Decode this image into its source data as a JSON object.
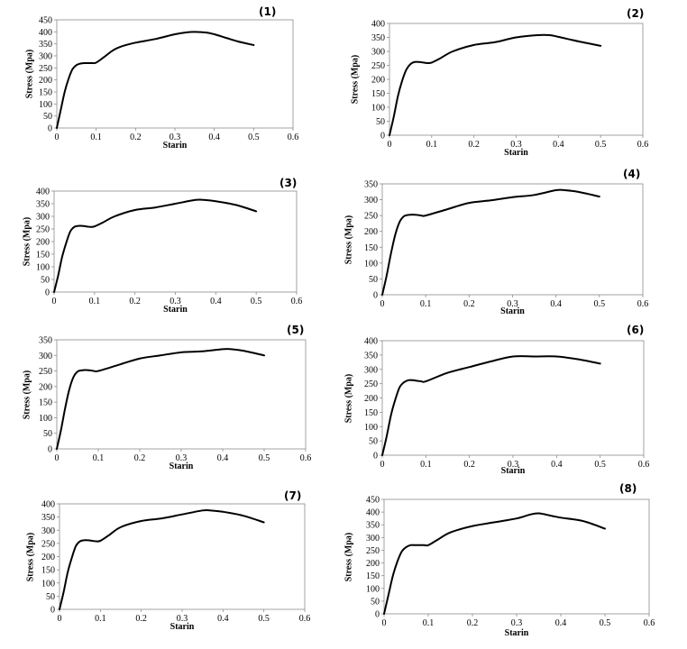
{
  "chart_data": [
    {
      "type": "line",
      "title": "(1)",
      "xlabel": "Starin",
      "ylabel": "Stress (Mpa)",
      "xlim": [
        0,
        0.6
      ],
      "ylim": [
        0,
        450
      ],
      "xticks": [
        0,
        0.1,
        0.2,
        0.3,
        0.4,
        0.5,
        0.6
      ],
      "yticks": [
        0,
        50,
        100,
        150,
        200,
        250,
        300,
        350,
        400,
        450
      ],
      "grid": false,
      "x": [
        0,
        0.01,
        0.02,
        0.03,
        0.04,
        0.05,
        0.06,
        0.07,
        0.08,
        0.09,
        0.1,
        0.12,
        0.14,
        0.16,
        0.2,
        0.25,
        0.3,
        0.33,
        0.35,
        0.38,
        0.4,
        0.43,
        0.46,
        0.5
      ],
      "y": [
        0,
        75,
        150,
        205,
        245,
        262,
        268,
        270,
        270,
        270,
        272,
        295,
        320,
        337,
        355,
        370,
        390,
        398,
        400,
        397,
        390,
        375,
        360,
        345
      ]
    },
    {
      "type": "line",
      "title": "(2)",
      "xlabel": "Starin",
      "ylabel": "Stress (Mpa)",
      "xlim": [
        0,
        0.6
      ],
      "ylim": [
        0,
        400
      ],
      "xticks": [
        0,
        0.1,
        0.2,
        0.3,
        0.4,
        0.5,
        0.6
      ],
      "yticks": [
        0,
        50,
        100,
        150,
        200,
        250,
        300,
        350,
        400
      ],
      "grid": false,
      "x": [
        0,
        0.01,
        0.02,
        0.03,
        0.04,
        0.05,
        0.06,
        0.07,
        0.08,
        0.09,
        0.1,
        0.12,
        0.15,
        0.2,
        0.25,
        0.3,
        0.35,
        0.38,
        0.4,
        0.45,
        0.5
      ],
      "y": [
        0,
        65,
        140,
        195,
        235,
        255,
        262,
        262,
        260,
        258,
        260,
        275,
        300,
        323,
        333,
        350,
        358,
        358,
        352,
        335,
        320
      ]
    },
    {
      "type": "line",
      "title": "(3)",
      "xlabel": "Starin",
      "ylabel": "Stress (Mpa)",
      "xlim": [
        0,
        0.6
      ],
      "ylim": [
        0,
        400
      ],
      "xticks": [
        0,
        0.1,
        0.2,
        0.3,
        0.4,
        0.5,
        0.6
      ],
      "yticks": [
        0,
        50,
        100,
        150,
        200,
        250,
        300,
        350,
        400
      ],
      "grid": false,
      "x": [
        0,
        0.01,
        0.02,
        0.03,
        0.04,
        0.05,
        0.06,
        0.07,
        0.08,
        0.09,
        0.1,
        0.12,
        0.15,
        0.2,
        0.25,
        0.3,
        0.35,
        0.37,
        0.4,
        0.45,
        0.5
      ],
      "y": [
        0,
        65,
        140,
        195,
        240,
        258,
        262,
        262,
        260,
        258,
        260,
        275,
        300,
        325,
        335,
        350,
        365,
        365,
        360,
        345,
        320
      ]
    },
    {
      "type": "line",
      "title": "(4)",
      "xlabel": "Starin",
      "ylabel": "Stress (Mpa)",
      "xlim": [
        0,
        0.6
      ],
      "ylim": [
        0,
        350
      ],
      "xticks": [
        0,
        0.1,
        0.2,
        0.3,
        0.4,
        0.5,
        0.6
      ],
      "yticks": [
        0,
        50,
        100,
        150,
        200,
        250,
        300,
        350
      ],
      "grid": false,
      "x": [
        0,
        0.01,
        0.02,
        0.03,
        0.04,
        0.05,
        0.06,
        0.07,
        0.08,
        0.09,
        0.1,
        0.15,
        0.2,
        0.25,
        0.3,
        0.35,
        0.4,
        0.42,
        0.45,
        0.5
      ],
      "y": [
        0,
        60,
        130,
        190,
        230,
        248,
        252,
        253,
        252,
        250,
        250,
        270,
        290,
        298,
        308,
        315,
        330,
        330,
        325,
        310
      ]
    },
    {
      "type": "line",
      "title": "(5)",
      "xlabel": "Starin",
      "ylabel": "Stress (Mpa)",
      "xlim": [
        0,
        0.6
      ],
      "ylim": [
        0,
        350
      ],
      "xticks": [
        0,
        0.1,
        0.2,
        0.3,
        0.4,
        0.5,
        0.6
      ],
      "yticks": [
        0,
        50,
        100,
        150,
        200,
        250,
        300,
        350
      ],
      "grid": false,
      "x": [
        0,
        0.01,
        0.02,
        0.03,
        0.04,
        0.05,
        0.06,
        0.07,
        0.08,
        0.09,
        0.1,
        0.15,
        0.2,
        0.25,
        0.3,
        0.35,
        0.4,
        0.42,
        0.45,
        0.5
      ],
      "y": [
        0,
        60,
        130,
        190,
        230,
        248,
        252,
        253,
        252,
        250,
        250,
        270,
        290,
        300,
        310,
        313,
        320,
        320,
        315,
        300
      ]
    },
    {
      "type": "line",
      "title": "(6)",
      "xlabel": "Starin",
      "ylabel": "Stress (Mpa)",
      "xlim": [
        0,
        0.6
      ],
      "ylim": [
        0,
        400
      ],
      "xticks": [
        0,
        0.1,
        0.2,
        0.3,
        0.4,
        0.5,
        0.6
      ],
      "yticks": [
        0,
        50,
        100,
        150,
        200,
        250,
        300,
        350,
        400
      ],
      "grid": false,
      "x": [
        0,
        0.01,
        0.02,
        0.03,
        0.04,
        0.05,
        0.06,
        0.07,
        0.08,
        0.09,
        0.1,
        0.15,
        0.2,
        0.25,
        0.3,
        0.35,
        0.4,
        0.45,
        0.5
      ],
      "y": [
        0,
        65,
        140,
        195,
        238,
        255,
        262,
        262,
        260,
        258,
        258,
        288,
        308,
        328,
        345,
        345,
        345,
        335,
        320
      ]
    },
    {
      "type": "line",
      "title": "(7)",
      "xlabel": "Starin",
      "ylabel": "Stress (Mpa)",
      "xlim": [
        0,
        0.6
      ],
      "ylim": [
        0,
        400
      ],
      "xticks": [
        0,
        0.1,
        0.2,
        0.3,
        0.4,
        0.5,
        0.6
      ],
      "yticks": [
        0,
        50,
        100,
        150,
        200,
        250,
        300,
        350,
        400
      ],
      "grid": false,
      "x": [
        0,
        0.01,
        0.02,
        0.03,
        0.04,
        0.05,
        0.06,
        0.07,
        0.08,
        0.09,
        0.1,
        0.12,
        0.15,
        0.2,
        0.25,
        0.3,
        0.35,
        0.37,
        0.4,
        0.45,
        0.5
      ],
      "y": [
        0,
        65,
        140,
        195,
        240,
        258,
        262,
        262,
        260,
        258,
        260,
        280,
        312,
        335,
        345,
        360,
        375,
        375,
        370,
        355,
        330
      ]
    },
    {
      "type": "line",
      "title": "(8)",
      "xlabel": "Starin",
      "ylabel": "Stress (Mpa)",
      "xlim": [
        0,
        0.6
      ],
      "ylim": [
        0,
        450
      ],
      "xticks": [
        0,
        0.1,
        0.2,
        0.3,
        0.4,
        0.5,
        0.6
      ],
      "yticks": [
        0,
        50,
        100,
        150,
        200,
        250,
        300,
        350,
        400,
        450
      ],
      "grid": false,
      "x": [
        0,
        0.01,
        0.02,
        0.03,
        0.04,
        0.05,
        0.06,
        0.07,
        0.08,
        0.09,
        0.1,
        0.12,
        0.15,
        0.2,
        0.25,
        0.3,
        0.33,
        0.35,
        0.38,
        0.4,
        0.45,
        0.5
      ],
      "y": [
        0,
        75,
        150,
        205,
        245,
        262,
        270,
        270,
        270,
        270,
        270,
        290,
        320,
        345,
        360,
        375,
        390,
        395,
        385,
        378,
        365,
        335
      ]
    }
  ]
}
